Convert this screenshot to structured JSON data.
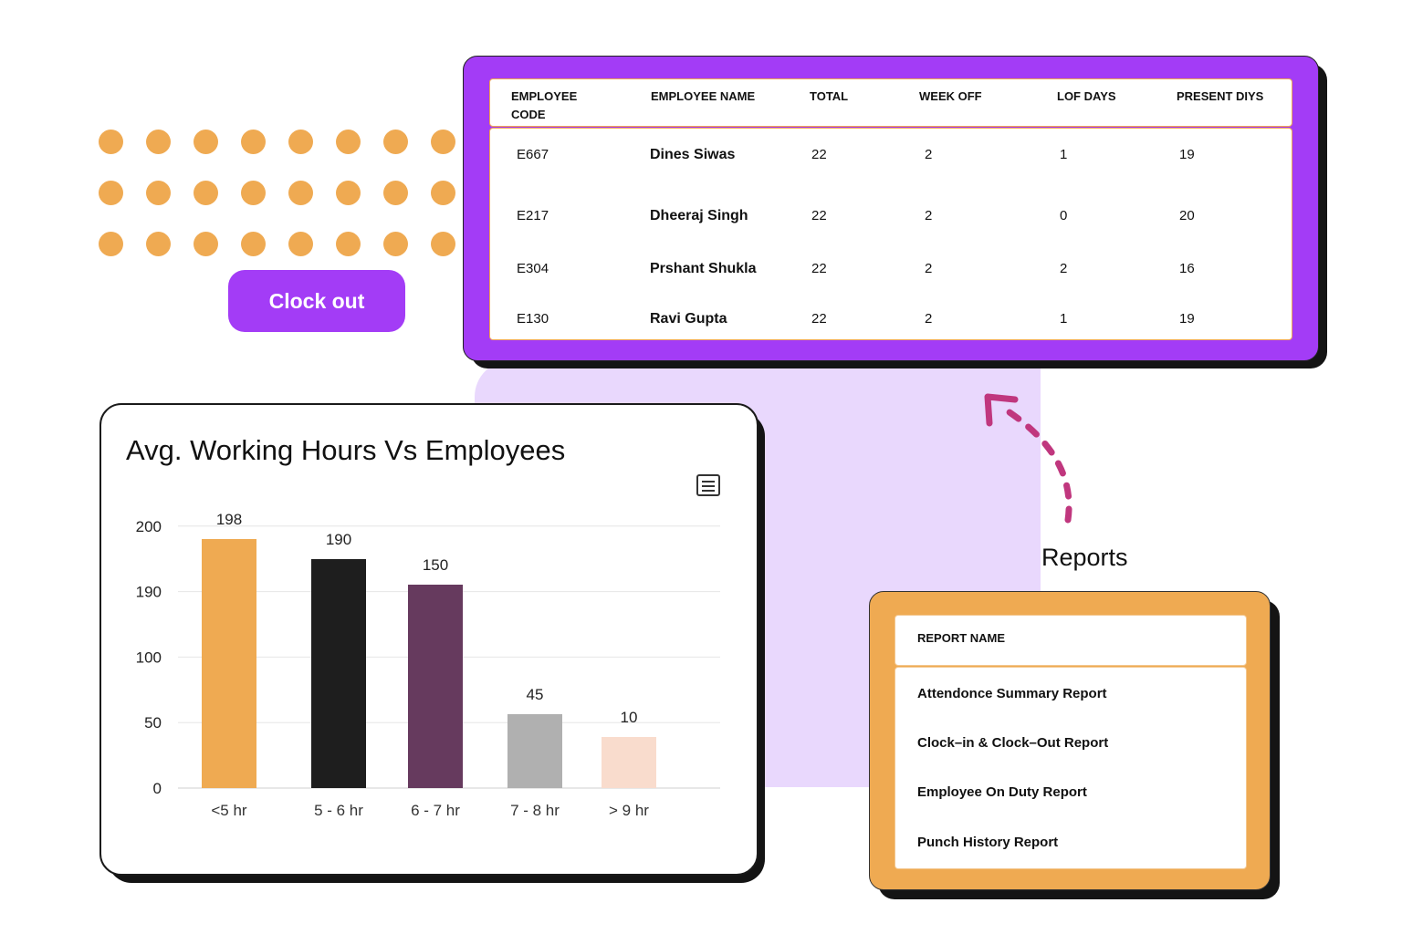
{
  "clock_out_button": "Clock out",
  "employee_table": {
    "headers": [
      "EMPLOYEE CODE",
      "EMPLOYEE NAME",
      "TOTAL",
      "WEEK OFF",
      "LOF DAYS",
      "PRESENT DIYS"
    ],
    "rows": [
      {
        "code": "E667",
        "name": "Dines Siwas",
        "total": "22",
        "week_off": "2",
        "lof_days": "1",
        "present": "19"
      },
      {
        "code": "E217",
        "name": "Dheeraj Singh",
        "total": "22",
        "week_off": "2",
        "lof_days": "0",
        "present": "20"
      },
      {
        "code": "E304",
        "name": "Prshant Shukla",
        "total": "22",
        "week_off": "2",
        "lof_days": "2",
        "present": "16"
      },
      {
        "code": "E130",
        "name": "Ravi Gupta",
        "total": "22",
        "week_off": "2",
        "lof_days": "1",
        "present": "19"
      }
    ]
  },
  "chart_data": {
    "type": "bar",
    "title": "Avg. Working Hours Vs Employees",
    "categories": [
      "<5 hr",
      "5 - 6 hr",
      "6 - 7 hr",
      "7 - 8 hr",
      "> 9 hr"
    ],
    "values": [
      198,
      190,
      150,
      45,
      10
    ],
    "data_labels": [
      "198",
      "190",
      "150",
      "45",
      "10"
    ],
    "bar_colors": [
      "#efaa52",
      "#1e1e1e",
      "#663a5e",
      "#b0b0b0",
      "#f9dccd"
    ],
    "y_ticks": [
      "0",
      "50",
      "100",
      "190",
      "200"
    ],
    "grid": true,
    "menu_icon": "hamburger-menu-icon"
  },
  "reports": {
    "label": "Reports",
    "header": "REPORT NAME",
    "items": [
      "Attendonce Summary Report",
      "Clock–in & Clock–Out Report",
      "Employee On Duty Report",
      "Punch History Report"
    ]
  },
  "colors": {
    "purple": "#a33cf6",
    "orange": "#efaa52",
    "lavender": "#e9d8fd",
    "arrow": "#c0377e"
  }
}
